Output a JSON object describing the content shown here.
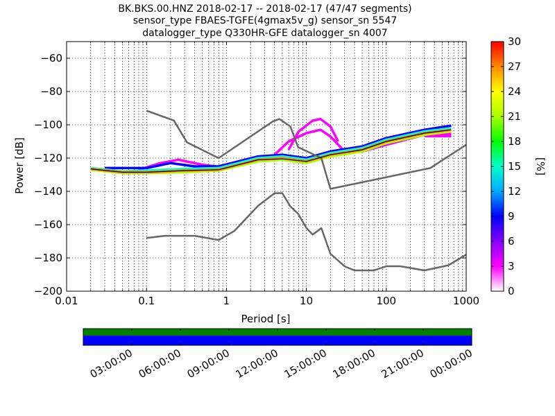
{
  "title_lines": [
    "BK.BKS.00.HNZ   2018-02-17 -- 2018-02-17  (47/47 segments)",
    "sensor_type FBAES-TGFE(4gmax5v_g) sensor_sn 5547",
    "datalogger_type Q330HR-GFE datalogger_sn 4007"
  ],
  "chart_data": {
    "type": "heatmap",
    "xlabel": "Period [s]",
    "ylabel": "Power [dB]",
    "xscale": "log",
    "xlim": [
      0.01,
      1000
    ],
    "ylim": [
      -200,
      -50
    ],
    "x_ticks": [
      {
        "value": 0.01,
        "label": "0.01"
      },
      {
        "value": 0.1,
        "label": "0.1"
      },
      {
        "value": 1,
        "label": "1"
      },
      {
        "value": 10,
        "label": "10"
      },
      {
        "value": 100,
        "label": "100"
      },
      {
        "value": 1000,
        "label": "1000"
      }
    ],
    "y_ticks": [
      {
        "value": -200,
        "label": "−200"
      },
      {
        "value": -180,
        "label": "−180"
      },
      {
        "value": -160,
        "label": "−160"
      },
      {
        "value": -140,
        "label": "−140"
      },
      {
        "value": -120,
        "label": "−120"
      },
      {
        "value": -100,
        "label": "−100"
      },
      {
        "value": -80,
        "label": "−80"
      },
      {
        "value": -60,
        "label": "−60"
      }
    ],
    "grid": true,
    "colorbar": {
      "label": "[%]",
      "min": 0,
      "max": 30,
      "ticks": [
        "0",
        "3",
        "6",
        "9",
        "12",
        "15",
        "18",
        "21",
        "24",
        "27",
        "30"
      ],
      "colors": [
        "#ffffff",
        "#ff00ff",
        "#8800ff",
        "#0000ff",
        "#00aaff",
        "#00ffcc",
        "#00ff00",
        "#aaff00",
        "#ffff00",
        "#ff8800",
        "#ff0000"
      ]
    },
    "model_curves": {
      "color": "#666666",
      "high_noise_model": [
        [
          0.1,
          -91.5
        ],
        [
          0.22,
          -97.4
        ],
        [
          0.32,
          -110.5
        ],
        [
          0.8,
          -120
        ],
        [
          3.8,
          -98
        ],
        [
          4.6,
          -96.5
        ],
        [
          6.3,
          -101
        ],
        [
          7.9,
          -113.5
        ],
        [
          15.4,
          -120
        ],
        [
          20,
          -138.5
        ],
        [
          354.8,
          -126
        ],
        [
          1000,
          -112
        ]
      ],
      "low_noise_model": [
        [
          0.1,
          -168
        ],
        [
          0.17,
          -166.7
        ],
        [
          0.4,
          -166.7
        ],
        [
          0.8,
          -169.2
        ],
        [
          1.26,
          -163.7
        ],
        [
          2.5,
          -148.6
        ],
        [
          4,
          -141.1
        ],
        [
          5,
          -141.1
        ],
        [
          6.3,
          -149
        ],
        [
          7.9,
          -153.5
        ],
        [
          10,
          -162
        ],
        [
          12,
          -166
        ],
        [
          15.4,
          -162.1
        ],
        [
          20,
          -177.5
        ],
        [
          30,
          -185
        ],
        [
          40,
          -187.5
        ],
        [
          70,
          -187.5
        ],
        [
          100,
          -185
        ],
        [
          150,
          -185
        ],
        [
          300,
          -187.5
        ],
        [
          600,
          -184.4
        ],
        [
          1000,
          -178
        ]
      ]
    },
    "density_bands": [
      {
        "name": "",
        "pct": 28,
        "points": [
          [
            0.02,
            -126.5
          ],
          [
            0.05,
            -128.5
          ],
          [
            0.1,
            -128.5
          ],
          [
            0.3,
            -127.5
          ],
          [
            0.8,
            -127
          ],
          [
            2.5,
            -121
          ],
          [
            5,
            -120
          ],
          [
            10,
            -122
          ],
          [
            20,
            -118
          ],
          [
            50,
            -115
          ],
          [
            100,
            -110
          ],
          [
            300,
            -105
          ],
          [
            650,
            -103
          ]
        ]
      },
      {
        "name": "",
        "pct": 21,
        "points": [
          [
            0.02,
            -127
          ],
          [
            0.05,
            -129
          ],
          [
            0.1,
            -129
          ],
          [
            0.3,
            -128.5
          ],
          [
            0.8,
            -127.5
          ],
          [
            2.5,
            -122
          ],
          [
            5,
            -121
          ],
          [
            10,
            -123
          ],
          [
            20,
            -119
          ],
          [
            50,
            -116
          ],
          [
            100,
            -111
          ],
          [
            300,
            -106
          ],
          [
            650,
            -104
          ]
        ]
      },
      {
        "name": "",
        "pct": 14,
        "points": [
          [
            0.02,
            -126
          ],
          [
            0.05,
            -128
          ],
          [
            0.1,
            -127.5
          ],
          [
            0.3,
            -126.5
          ],
          [
            0.8,
            -126
          ],
          [
            2.5,
            -120
          ],
          [
            5,
            -119
          ],
          [
            10,
            -121
          ],
          [
            20,
            -117
          ],
          [
            50,
            -114
          ],
          [
            100,
            -109
          ],
          [
            300,
            -104
          ],
          [
            650,
            -102
          ]
        ]
      },
      {
        "name": "",
        "pct": 8,
        "points": [
          [
            0.03,
            -126
          ],
          [
            0.1,
            -126
          ],
          [
            0.2,
            -123
          ],
          [
            0.4,
            -125
          ],
          [
            0.8,
            -125
          ],
          [
            2.5,
            -119
          ],
          [
            5,
            -118
          ],
          [
            10,
            -120
          ],
          [
            20,
            -116
          ],
          [
            50,
            -113
          ],
          [
            100,
            -108
          ],
          [
            300,
            -103
          ],
          [
            650,
            -100.5
          ]
        ]
      },
      {
        "name": "",
        "pct": 4,
        "points": [
          [
            0.08,
            -127
          ],
          [
            0.15,
            -123
          ],
          [
            0.25,
            -121
          ],
          [
            0.5,
            -124
          ],
          [
            0.9,
            -125.5
          ]
        ]
      },
      {
        "name": "",
        "pct": 4,
        "points": [
          [
            4,
            -118
          ],
          [
            6,
            -110
          ],
          [
            10,
            -105
          ],
          [
            15,
            -103
          ],
          [
            20,
            -107
          ],
          [
            30,
            -116
          ]
        ]
      },
      {
        "name": "",
        "pct": 3,
        "points": [
          [
            6,
            -115
          ],
          [
            8,
            -104
          ],
          [
            12,
            -97.5
          ],
          [
            15,
            -96.5
          ],
          [
            20,
            -101
          ],
          [
            25,
            -110
          ]
        ]
      },
      {
        "name": "",
        "pct": 3,
        "points": [
          [
            300,
            -106.5
          ],
          [
            650,
            -106.5
          ]
        ]
      },
      {
        "name": "",
        "pct": 2,
        "points": [
          [
            20,
            -118
          ],
          [
            50,
            -116
          ],
          [
            100,
            -112
          ],
          [
            300,
            -106
          ],
          [
            650,
            -105
          ]
        ]
      }
    ],
    "mode_line": [
      [
        0.02,
        -126.5
      ],
      [
        0.05,
        -128.5
      ],
      [
        0.1,
        -128.5
      ],
      [
        0.3,
        -127.5
      ],
      [
        0.8,
        -127
      ],
      [
        2.5,
        -121
      ],
      [
        5,
        -120.5
      ],
      [
        10,
        -122
      ],
      [
        20,
        -118
      ],
      [
        50,
        -115
      ],
      [
        100,
        -110
      ],
      [
        300,
        -105
      ],
      [
        650,
        -103
      ]
    ]
  },
  "timeline": {
    "labels": [
      "03:00:00",
      "06:00:00",
      "09:00:00",
      "12:00:00",
      "15:00:00",
      "18:00:00",
      "21:00:00",
      "00:00:00"
    ],
    "top_color": "#008000",
    "bottom_color": "#0000ff"
  }
}
